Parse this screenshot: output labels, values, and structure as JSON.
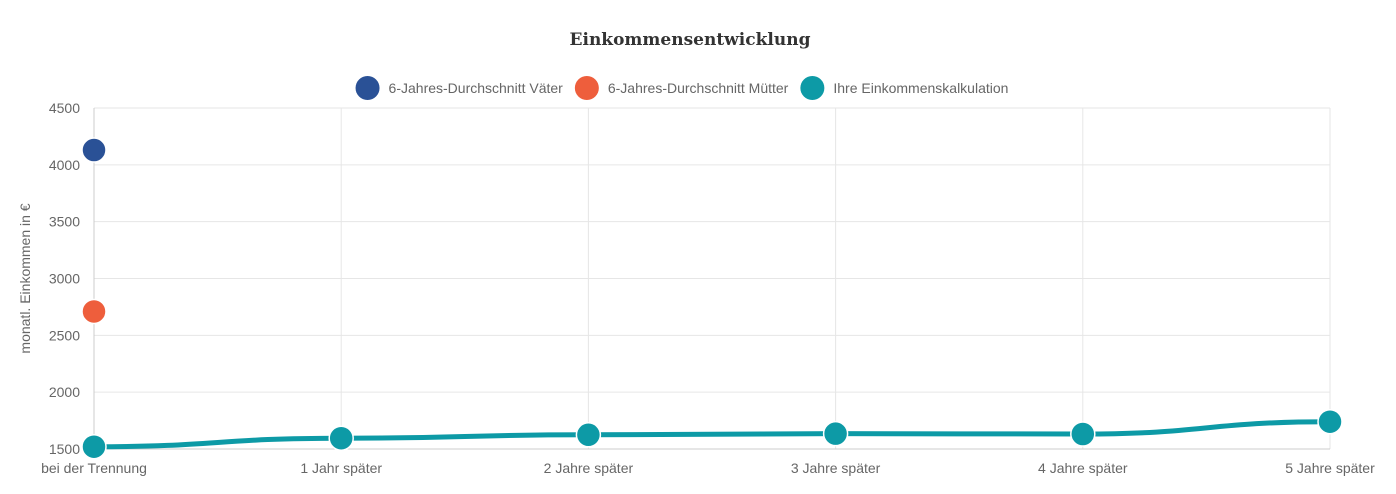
{
  "chart_data": {
    "type": "line",
    "title": "Einkommensentwicklung",
    "ylabel": "monatl. Einkommen in €",
    "xlabel": "",
    "ylim": [
      1500,
      4500
    ],
    "y_ticks": [
      "4500",
      "4000",
      "3500",
      "3000",
      "2500",
      "2000",
      "1500"
    ],
    "categories": [
      "bei der Trennung",
      "1 Jahr später",
      "2 Jahre später",
      "3 Jahre später",
      "4 Jahre später",
      "5 Jahre später"
    ],
    "legend_position": "top",
    "grid": true,
    "series": [
      {
        "name": "6-Jahres-Durchschnitt Väter",
        "color": "#2a5196",
        "values": [
          4130,
          null,
          null,
          null,
          null,
          null
        ]
      },
      {
        "name": "6-Jahres-Durchschnitt Mütter",
        "color": "#ee5e3c",
        "values": [
          2710,
          null,
          null,
          null,
          null,
          null
        ]
      },
      {
        "name": "Ihre Einkommenskalkulation",
        "color": "#0d9aa6",
        "values": [
          1520,
          1595,
          1625,
          1635,
          1632,
          1740
        ]
      }
    ]
  }
}
